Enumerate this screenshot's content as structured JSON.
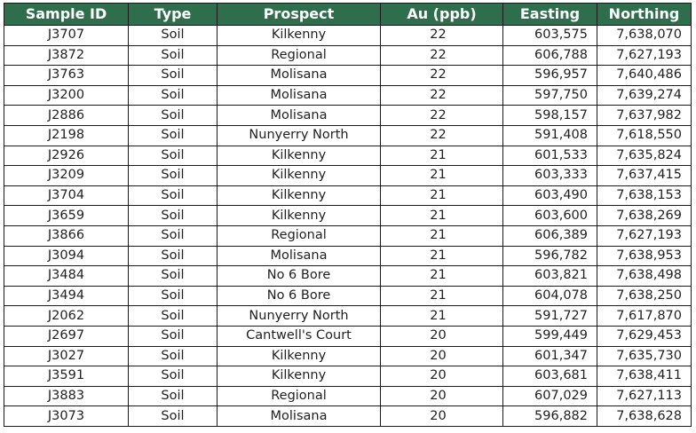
{
  "colors": {
    "header_bg": "#2e6e4d",
    "header_text": "#ffffff",
    "cell_text": "#1f1f1f",
    "border": "#1a1a1a"
  },
  "table": {
    "headers": [
      "Sample ID",
      "Type",
      "Prospect",
      "Au (ppb)",
      "Easting",
      "Northing"
    ],
    "rows": [
      [
        "J3707",
        "Soil",
        "Kilkenny",
        "22",
        "603,575",
        "7,638,070"
      ],
      [
        "J3872",
        "Soil",
        "Regional",
        "22",
        "606,788",
        "7,627,193"
      ],
      [
        "J3763",
        "Soil",
        "Molisana",
        "22",
        "596,957",
        "7,640,486"
      ],
      [
        "J3200",
        "Soil",
        "Molisana",
        "22",
        "597,750",
        "7,639,274"
      ],
      [
        "J2886",
        "Soil",
        "Molisana",
        "22",
        "598,157",
        "7,637,982"
      ],
      [
        "J2198",
        "Soil",
        "Nunyerry North",
        "22",
        "591,408",
        "7,618,550"
      ],
      [
        "J2926",
        "Soil",
        "Kilkenny",
        "21",
        "601,533",
        "7,635,824"
      ],
      [
        "J3209",
        "Soil",
        "Kilkenny",
        "21",
        "603,333",
        "7,637,415"
      ],
      [
        "J3704",
        "Soil",
        "Kilkenny",
        "21",
        "603,490",
        "7,638,153"
      ],
      [
        "J3659",
        "Soil",
        "Kilkenny",
        "21",
        "603,600",
        "7,638,269"
      ],
      [
        "J3866",
        "Soil",
        "Regional",
        "21",
        "606,389",
        "7,627,193"
      ],
      [
        "J3094",
        "Soil",
        "Molisana",
        "21",
        "596,782",
        "7,638,953"
      ],
      [
        "J3484",
        "Soil",
        "No 6 Bore",
        "21",
        "603,821",
        "7,638,498"
      ],
      [
        "J3494",
        "Soil",
        "No 6 Bore",
        "21",
        "604,078",
        "7,638,250"
      ],
      [
        "J2062",
        "Soil",
        "Nunyerry North",
        "21",
        "591,727",
        "7,617,870"
      ],
      [
        "J2697",
        "Soil",
        "Cantwell's Court",
        "20",
        "599,449",
        "7,629,453"
      ],
      [
        "J3027",
        "Soil",
        "Kilkenny",
        "20",
        "601,347",
        "7,635,730"
      ],
      [
        "J3591",
        "Soil",
        "Kilkenny",
        "20",
        "603,681",
        "7,638,411"
      ],
      [
        "J3883",
        "Soil",
        "Regional",
        "20",
        "607,029",
        "7,627,113"
      ],
      [
        "J3073",
        "Soil",
        "Molisana",
        "20",
        "596,882",
        "7,638,628"
      ]
    ]
  }
}
